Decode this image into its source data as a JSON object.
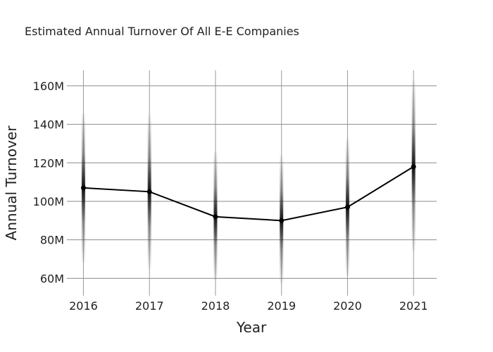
{
  "chart_data": {
    "type": "line",
    "title": "Estimated Annual Turnover Of All E-E Companies",
    "xlabel": "Year",
    "ylabel": "Annual Turnover",
    "x": [
      2016,
      2017,
      2018,
      2019,
      2020,
      2021
    ],
    "x_tick_labels": [
      "2016",
      "2017",
      "2018",
      "2019",
      "2020",
      "2021"
    ],
    "y_ticks": [
      60000000,
      80000000,
      100000000,
      120000000,
      140000000,
      160000000
    ],
    "y_tick_labels": [
      "60M",
      "80M",
      "100M",
      "120M",
      "140M",
      "160M"
    ],
    "ylim": [
      51000000,
      168000000
    ],
    "xlim": [
      2015.75,
      2021.35
    ],
    "grid": true,
    "series": [
      {
        "values": [
          107000000,
          105000000,
          92000000,
          90000000,
          97000000,
          118000000
        ],
        "error_low": [
          68000000,
          65000000,
          59000000,
          57000000,
          61000000,
          74000000
        ],
        "error_high": [
          146000000,
          145000000,
          126000000,
          124000000,
          133000000,
          163000000
        ],
        "color": "#000000",
        "band_color": "#000000"
      }
    ]
  }
}
